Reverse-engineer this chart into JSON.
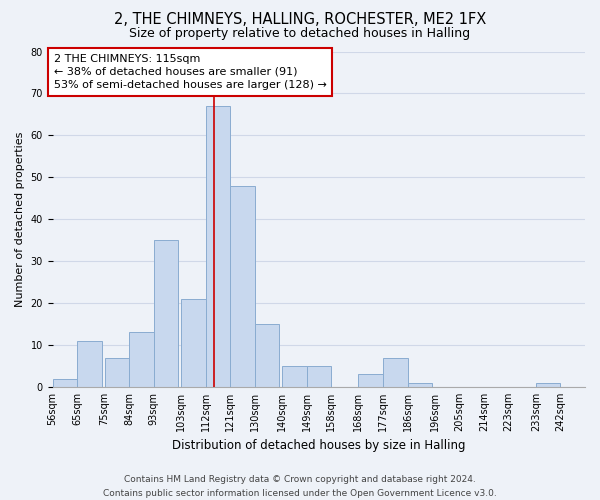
{
  "title": "2, THE CHIMNEYS, HALLING, ROCHESTER, ME2 1FX",
  "subtitle": "Size of property relative to detached houses in Halling",
  "xlabel": "Distribution of detached houses by size in Halling",
  "ylabel": "Number of detached properties",
  "bar_color": "#c8d8ee",
  "bar_edge_color": "#8aacd0",
  "background_color": "#eef2f8",
  "plot_bg_color": "#eef2f8",
  "grid_color": "#d0d8e8",
  "bin_labels": [
    "56sqm",
    "65sqm",
    "75sqm",
    "84sqm",
    "93sqm",
    "103sqm",
    "112sqm",
    "121sqm",
    "130sqm",
    "140sqm",
    "149sqm",
    "158sqm",
    "168sqm",
    "177sqm",
    "186sqm",
    "196sqm",
    "205sqm",
    "214sqm",
    "223sqm",
    "233sqm",
    "242sqm"
  ],
  "bin_edges": [
    56,
    65,
    75,
    84,
    93,
    103,
    112,
    121,
    130,
    140,
    149,
    158,
    168,
    177,
    186,
    196,
    205,
    214,
    223,
    233,
    242
  ],
  "bin_width": 9,
  "counts": [
    2,
    11,
    7,
    13,
    35,
    21,
    67,
    48,
    15,
    5,
    5,
    0,
    3,
    7,
    1,
    0,
    0,
    0,
    0,
    1,
    0
  ],
  "ref_line_x": 115,
  "ref_line_color": "#cc0000",
  "annotation_line1": "2 THE CHIMNEYS: 115sqm",
  "annotation_line2": "← 38% of detached houses are smaller (91)",
  "annotation_line3": "53% of semi-detached houses are larger (128) →",
  "annotation_box_color": "#ffffff",
  "annotation_box_edge_color": "#cc0000",
  "ylim": [
    0,
    80
  ],
  "yticks": [
    0,
    10,
    20,
    30,
    40,
    50,
    60,
    70,
    80
  ],
  "footer_text": "Contains HM Land Registry data © Crown copyright and database right 2024.\nContains public sector information licensed under the Open Government Licence v3.0.",
  "title_fontsize": 10.5,
  "subtitle_fontsize": 9,
  "xlabel_fontsize": 8.5,
  "ylabel_fontsize": 8,
  "tick_fontsize": 7,
  "annotation_fontsize": 8,
  "footer_fontsize": 6.5
}
